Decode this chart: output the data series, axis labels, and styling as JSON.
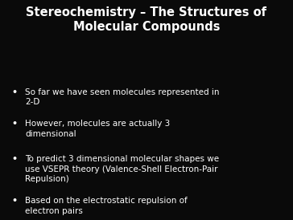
{
  "background_color": "#0a0a0a",
  "title_line1": "Stereochemistry – The Structures of",
  "title_line2": "Molecular Compounds",
  "title_color": "#ffffff",
  "title_fontsize": 10.5,
  "bullet_color": "#ffffff",
  "bullet_fontsize": 7.5,
  "bullets": [
    "So far we have seen molecules represented in\n2-D",
    "However, molecules are actually 3\ndimensional",
    "To predict 3 dimensional molecular shapes we\nuse VSEPR theory (Valence-Shell Electron-Pair\nRepulsion)",
    "Based on the electrostatic repulsion of\nelectron pairs"
  ],
  "font_family": "DejaVu Sans",
  "fig_width": 3.64,
  "fig_height": 2.74,
  "dpi": 100
}
